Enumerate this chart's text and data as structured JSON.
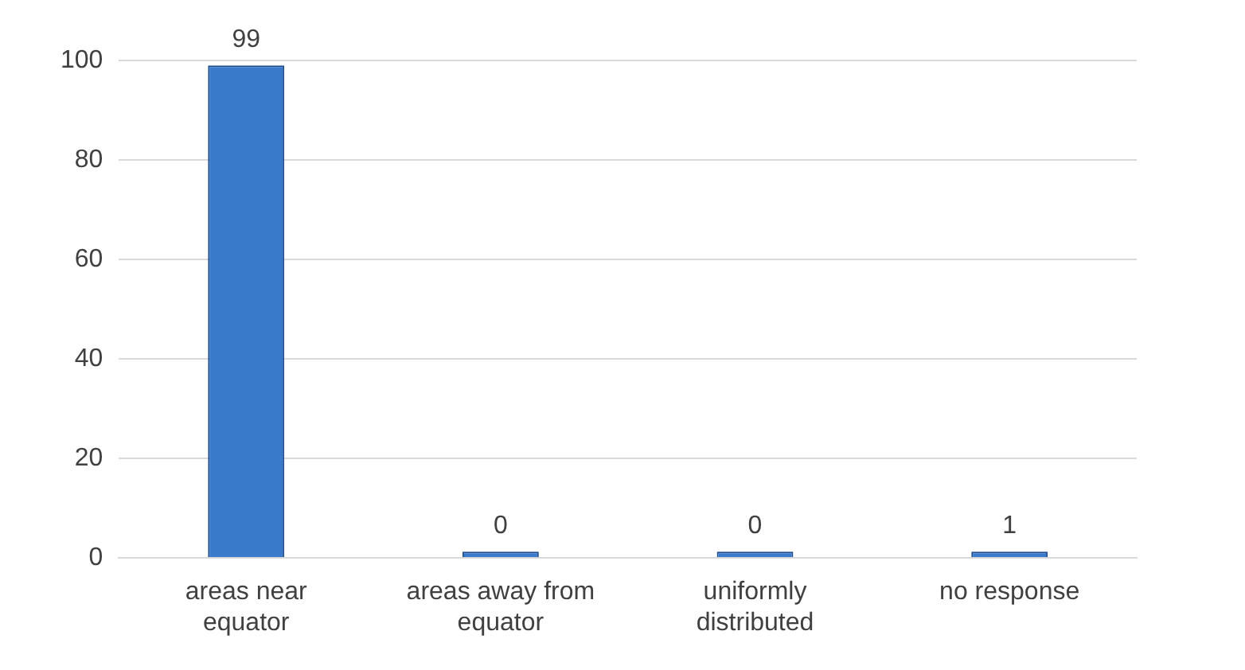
{
  "chart_data": {
    "type": "bar",
    "categories": [
      "areas near equator",
      "areas away from equator",
      "uniformly distributed",
      "no response"
    ],
    "values": [
      99,
      0,
      0,
      1
    ],
    "color": "#3a7acb",
    "ylim": [
      0,
      100
    ],
    "yticks": [
      0,
      20,
      40,
      60,
      80,
      100
    ],
    "grid": "y",
    "data_labels": true
  }
}
